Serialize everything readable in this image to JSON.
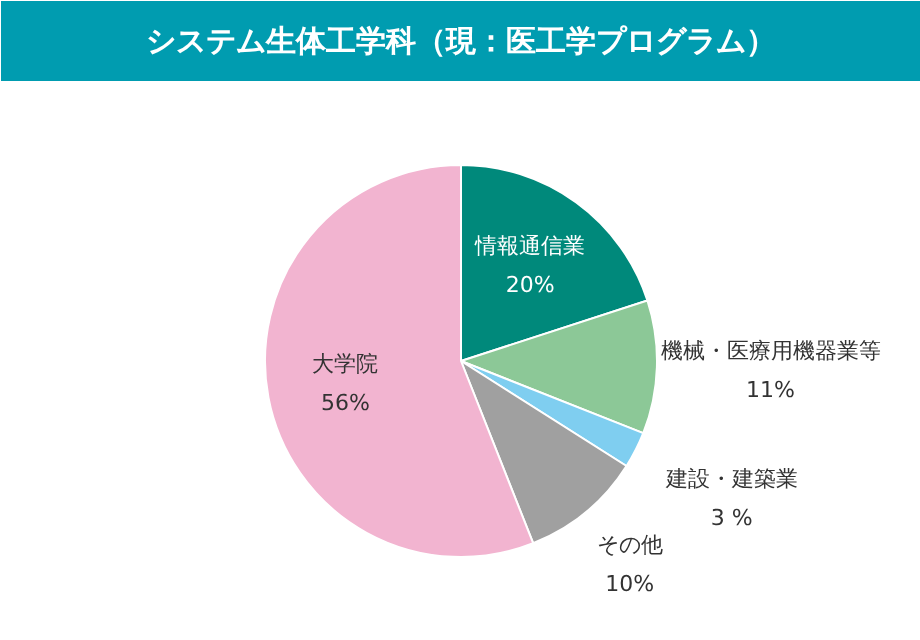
{
  "chart_data": {
    "type": "pie",
    "title": "システム生体工学科（現：医工学プログラム）",
    "categories": [
      "情報通信業",
      "機械・医療用機器業等",
      "建設・建築業",
      "その他",
      "大学院"
    ],
    "values": [
      20,
      11,
      3,
      10,
      56
    ],
    "colors": [
      "#00897b",
      "#8cc897",
      "#7fcef0",
      "#a0a0a0",
      "#f2b4d0"
    ],
    "value_labels": [
      "20%",
      "11%",
      "3 %",
      "10%",
      "56%"
    ]
  }
}
